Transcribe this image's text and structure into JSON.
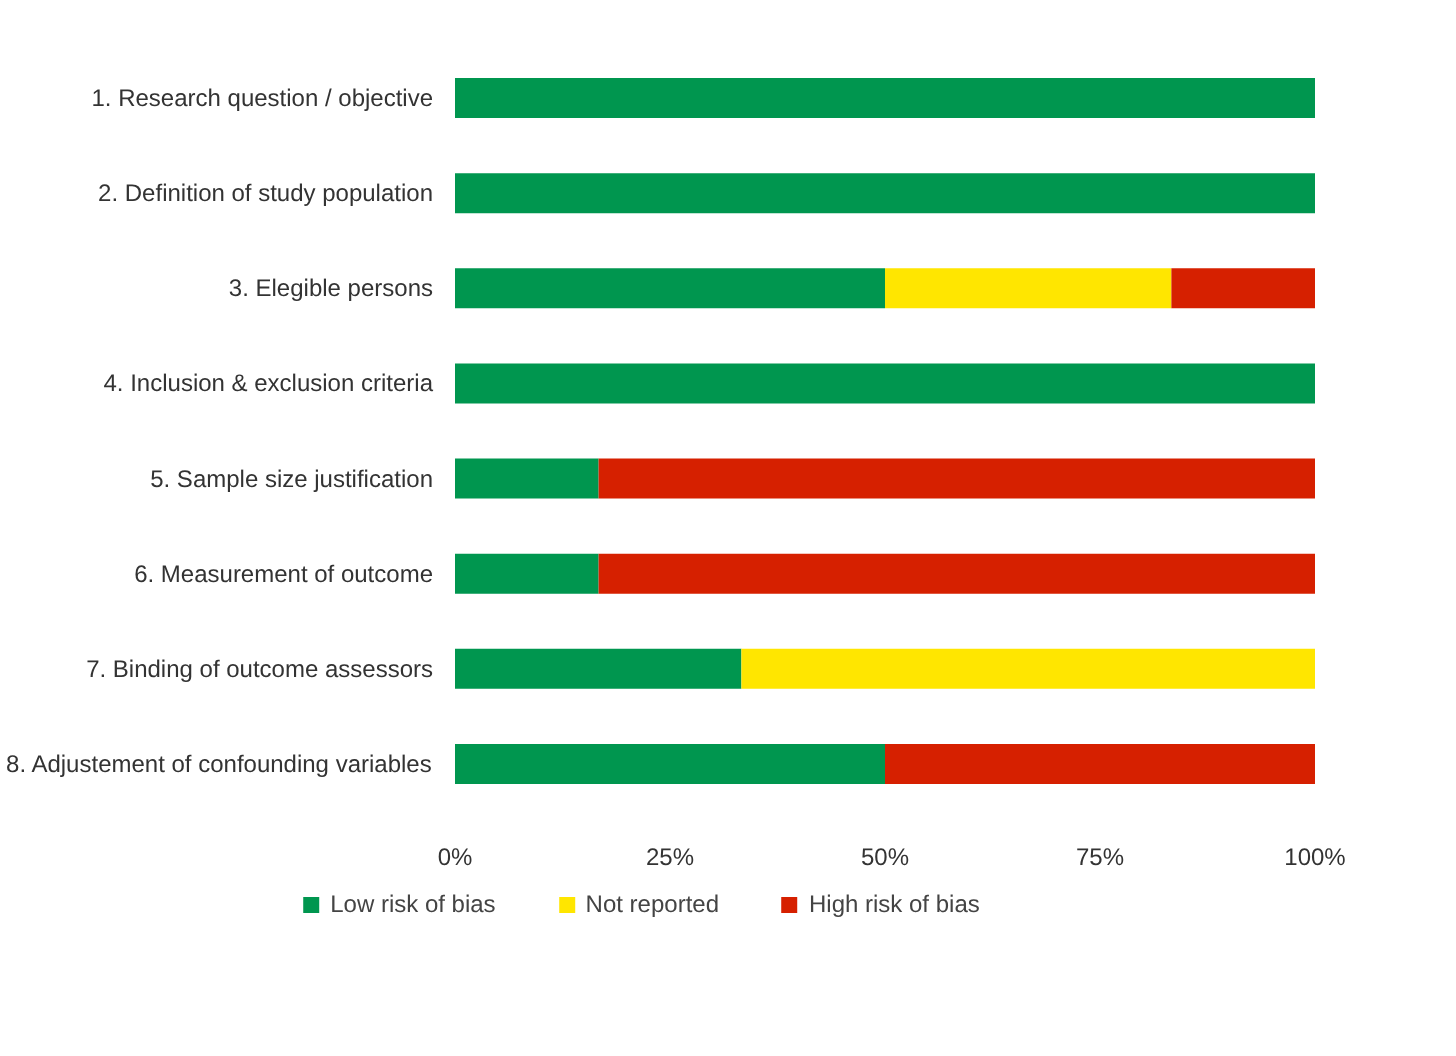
{
  "chart_data": {
    "type": "bar",
    "orientation": "horizontal",
    "stacked": true,
    "categories": [
      "1. Research question / objective",
      "2. Definition of study population",
      "3. Elegible persons",
      "4. Inclusion & exclusion criteria",
      "5. Sample size justification",
      "6. Measurement of outcome",
      "7. Binding of outcome assessors",
      "8. Adjustement of confounding variables"
    ],
    "series": [
      {
        "name": "Low risk of bias",
        "color": "#00964f",
        "values": [
          100,
          100,
          50,
          100,
          16.7,
          16.7,
          33.3,
          50
        ]
      },
      {
        "name": "Not reported",
        "color": "#ffe600",
        "values": [
          0,
          0,
          33.3,
          0,
          0,
          0,
          66.7,
          0
        ]
      },
      {
        "name": "High risk of bias",
        "color": "#d62000",
        "values": [
          0,
          0,
          16.7,
          0,
          83.3,
          83.3,
          0,
          50
        ]
      }
    ],
    "xlim": [
      0,
      100
    ],
    "xticks": [
      {
        "value": 0,
        "label": "0%"
      },
      {
        "value": 25,
        "label": "25%"
      },
      {
        "value": 50,
        "label": "50%"
      },
      {
        "value": 75,
        "label": "75%"
      },
      {
        "value": 100,
        "label": "100%"
      }
    ],
    "grid": false,
    "legend": "bottom"
  }
}
